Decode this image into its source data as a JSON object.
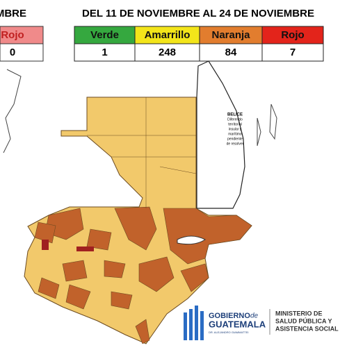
{
  "left_table": {
    "title_fragment": "EMBRE",
    "header": "Rojo",
    "value": 0
  },
  "header": {
    "title": "DEL 11 DE NOVIEMBRE AL 24 DE NOVIEMBRE"
  },
  "table": {
    "columns": [
      {
        "label": "Verde",
        "count": 1
      },
      {
        "label": "Amarrillo",
        "count": 248
      },
      {
        "label": "Naranja",
        "count": 84
      },
      {
        "label": "Rojo",
        "count": 7
      }
    ]
  },
  "map": {
    "belize_note": [
      "BELICE",
      "Diferendo",
      "territorial",
      "insular y",
      "marítimo",
      "pendiente",
      "de resolver"
    ]
  },
  "logo": {
    "gobierno": "GOBIERNO",
    "de": "de",
    "guatemala": "GUATEMALA",
    "president": "DR. ALEJANDRO GIAMMATTEI",
    "ministry": [
      "MINISTERIO DE",
      "SALUD PÚBLICA Y",
      "ASISTENCIA SOCIAL"
    ]
  }
}
